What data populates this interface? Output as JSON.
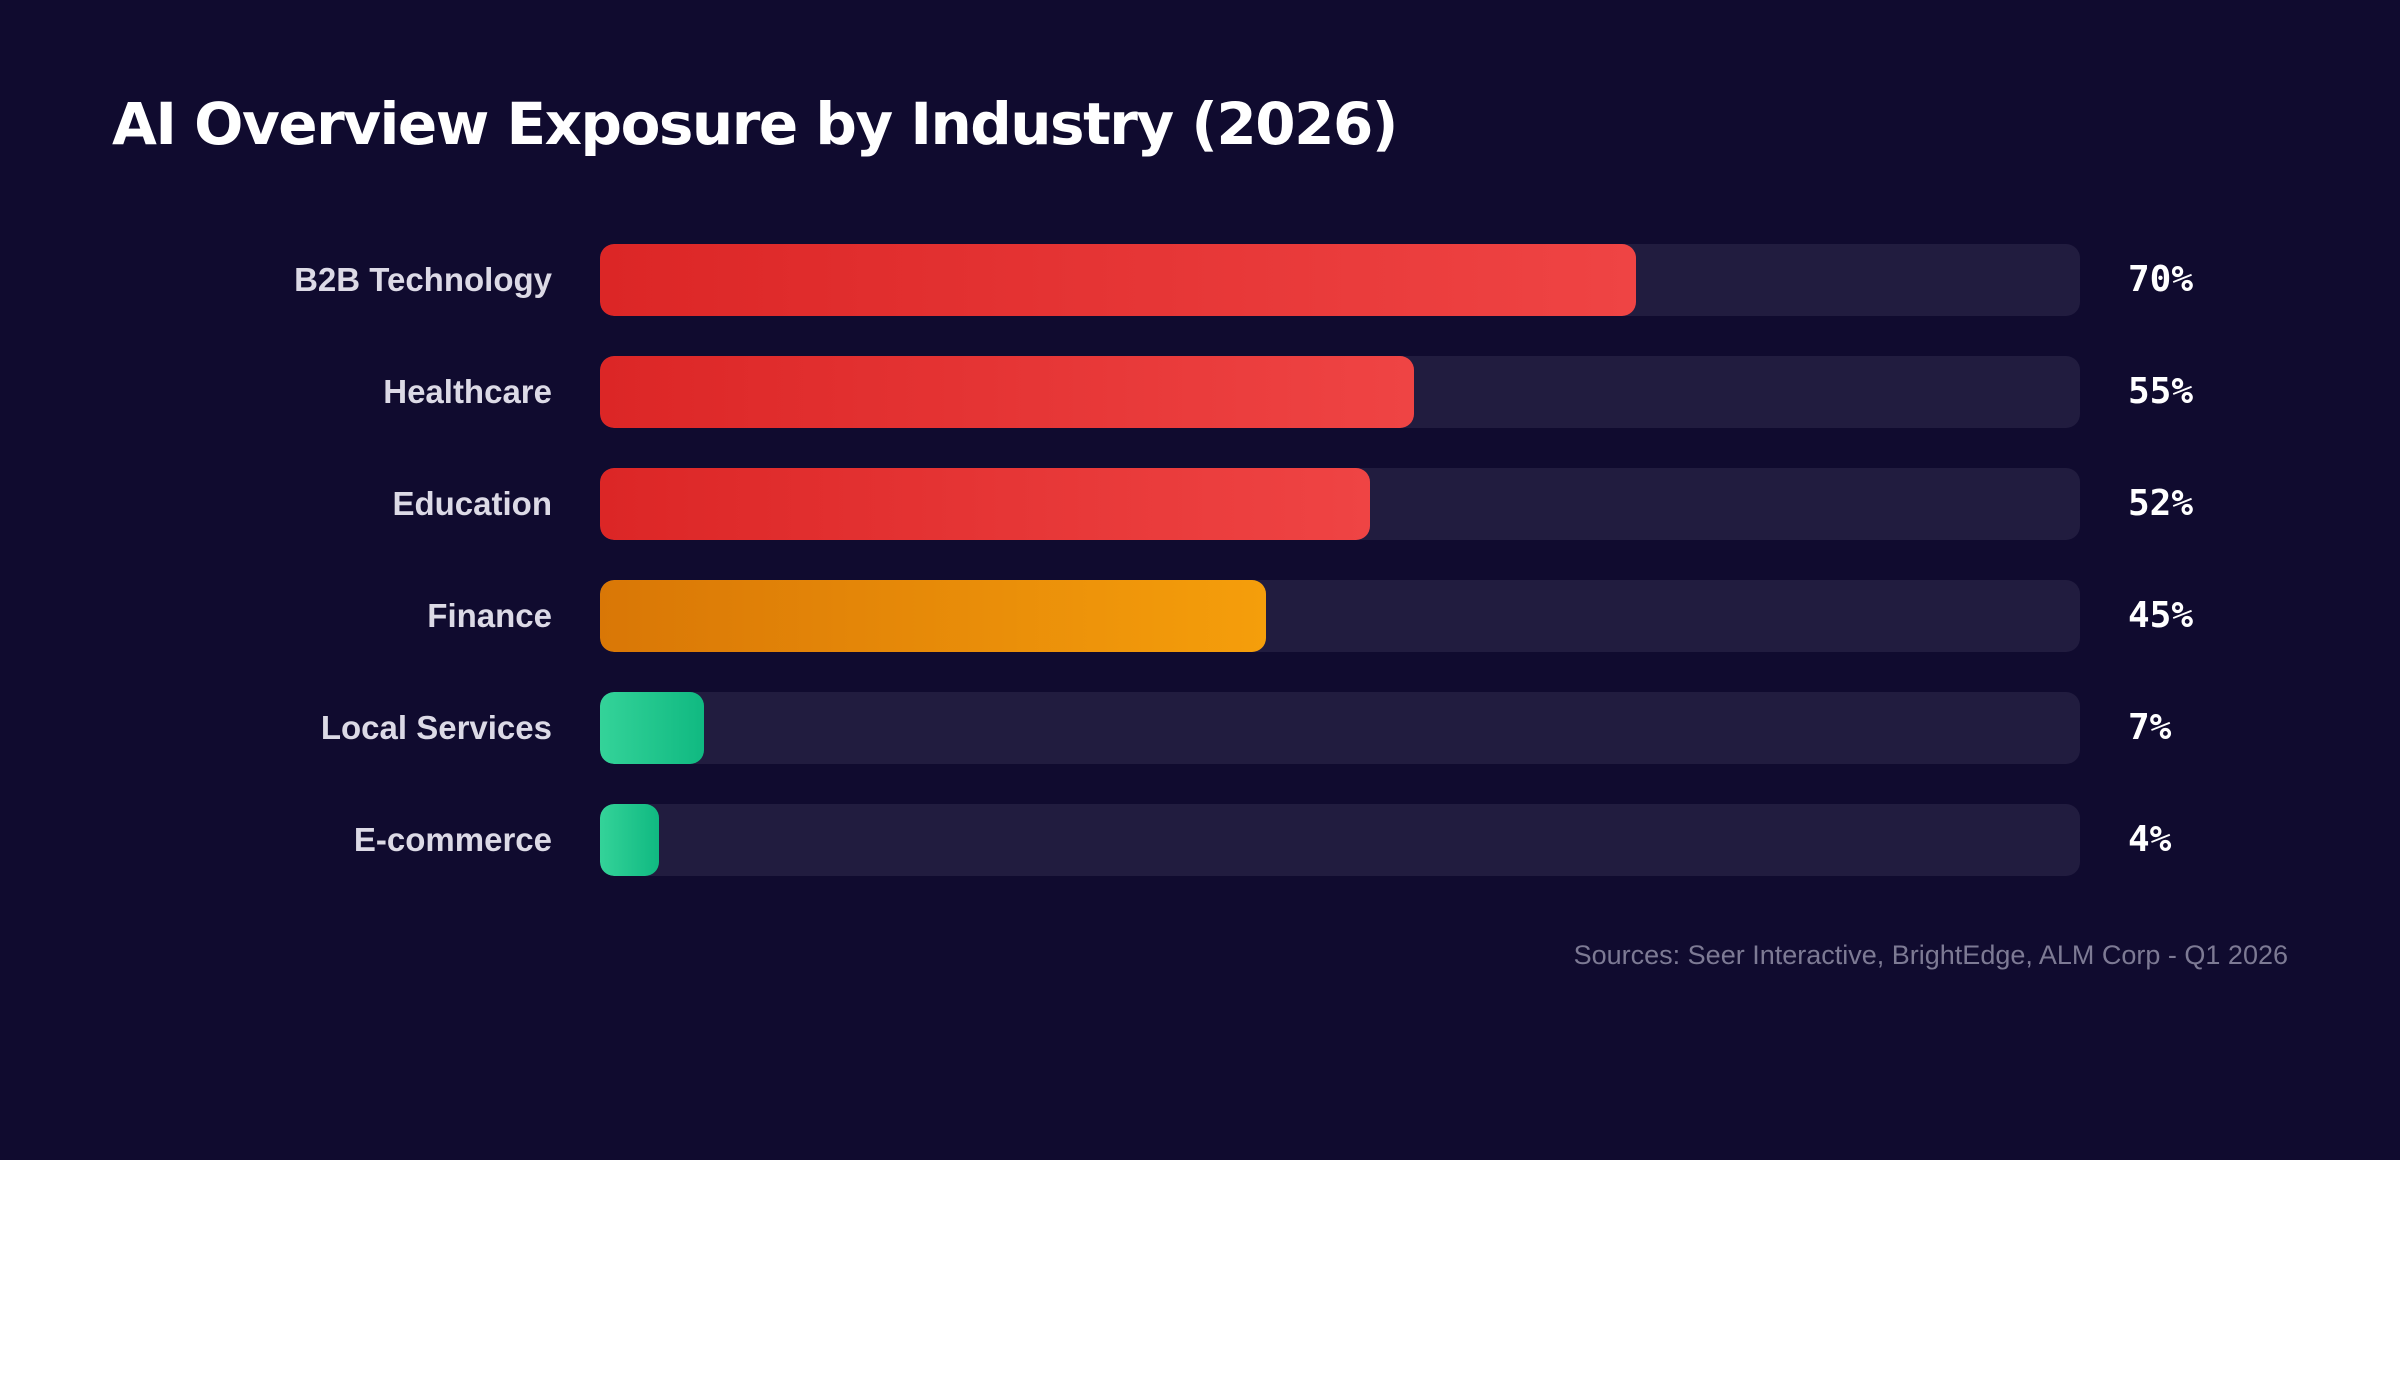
{
  "title": "AI Overview Exposure by Industry (2026)",
  "source": "Sources: Seer Interactive, BrightEdge, ALM Corp - Q1 2026",
  "colors": {
    "background": "#100b2f",
    "track": "#211c3f",
    "red": [
      "#dc2626",
      "#ef4444"
    ],
    "amber": [
      "#d97706",
      "#f59e0b"
    ],
    "green": [
      "#34d399",
      "#10b981"
    ]
  },
  "chart_data": {
    "type": "bar",
    "orientation": "horizontal",
    "title": "AI Overview Exposure by Industry (2026)",
    "xlim": [
      0,
      100
    ],
    "grid": false,
    "legend": "none",
    "categories": [
      "B2B Technology",
      "Healthcare",
      "Education",
      "Finance",
      "Local Services",
      "E-commerce"
    ],
    "values": [
      70,
      55,
      52,
      45,
      7,
      4
    ],
    "value_labels": [
      "70%",
      "55%",
      "52%",
      "45%",
      "7%",
      "4%"
    ],
    "bar_colors": [
      "red",
      "red",
      "red",
      "amber",
      "green",
      "green"
    ]
  }
}
